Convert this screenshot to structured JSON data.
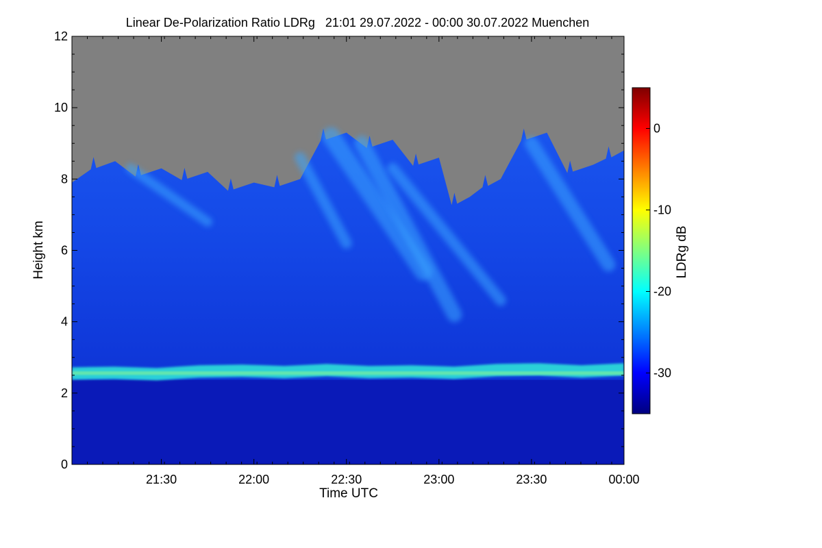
{
  "chart_data": {
    "type": "heatmap",
    "title": "Linear De-Polarization Ratio LDRg   21:01 29.07.2022 - 00:00 30.07.2022 Muenchen",
    "xlabel": "Time UTC",
    "ylabel": "Height km",
    "x_range": [
      "21:01",
      "00:00"
    ],
    "x_ticks": [
      "21:30",
      "22:00",
      "22:30",
      "23:00",
      "23:30",
      "00:00"
    ],
    "y_range": [
      0,
      12
    ],
    "y_ticks": [
      "0",
      "2",
      "4",
      "6",
      "8",
      "10",
      "12"
    ],
    "colorbar": {
      "label": "LDRg dB",
      "range": [
        -35,
        5
      ],
      "ticks": [
        "0",
        "-10",
        "-20",
        "-30"
      ],
      "colormap": [
        "#00007f",
        "#0000ff",
        "#0080ff",
        "#00ffff",
        "#80ff80",
        "#ffff00",
        "#ff8000",
        "#ff0000",
        "#7f0000"
      ]
    },
    "no_signal_color": "#808080",
    "features": {
      "cloud_top_km": [
        7.9,
        8.5,
        8.3,
        8.2,
        7.9,
        8.0,
        9.3,
        9.1,
        8.6,
        7.5,
        8.0,
        9.3,
        8.4,
        8.8
      ],
      "cloud_top_times": [
        "21:01",
        "21:15",
        "21:30",
        "21:45",
        "22:00",
        "22:15",
        "22:30",
        "22:45",
        "23:00",
        "23:10",
        "23:20",
        "23:35",
        "23:50",
        "00:00"
      ],
      "bright_layer_km": 2.55,
      "bright_layer_ldr_db": -20
    }
  }
}
